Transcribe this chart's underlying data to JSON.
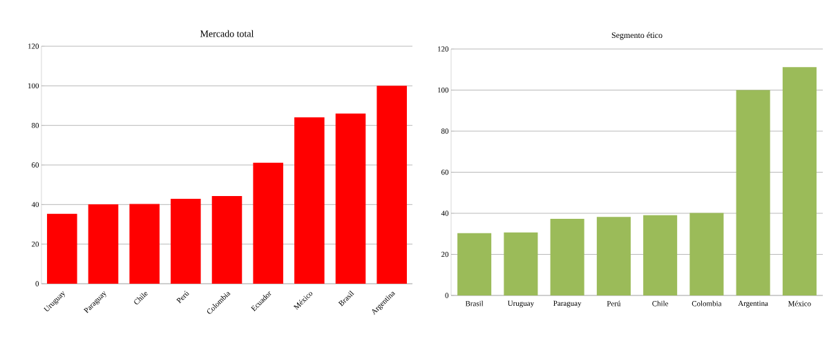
{
  "chart_data": [
    {
      "type": "bar",
      "title": "Mercado total",
      "categories": [
        "Uruguay",
        "Paraguay",
        "Chile",
        "Perú",
        "Colombia",
        "Ecuador",
        "México",
        "Brasil",
        "Argentina"
      ],
      "values": [
        35.3,
        40.1,
        40.3,
        42.9,
        44.3,
        61.1,
        84.1,
        86.0,
        100
      ],
      "color": "#ff0000",
      "ylim": [
        0,
        120
      ],
      "yticks": [
        0,
        20,
        40,
        60,
        80,
        100,
        120
      ],
      "grid": "y"
    },
    {
      "type": "bar",
      "title": "Segmento ético",
      "categories": [
        "Brasil",
        "Uruguay",
        "Paraguay",
        "Perú",
        "Chile",
        "Colombia",
        "Argentina",
        "México"
      ],
      "values": [
        30.3,
        30.7,
        37.3,
        38.2,
        39.1,
        40.2,
        100,
        111.2
      ],
      "color": "#9bbb59",
      "ylim": [
        0,
        120
      ],
      "yticks": [
        0,
        20,
        40,
        60,
        80,
        100,
        120
      ],
      "grid": "y"
    }
  ]
}
